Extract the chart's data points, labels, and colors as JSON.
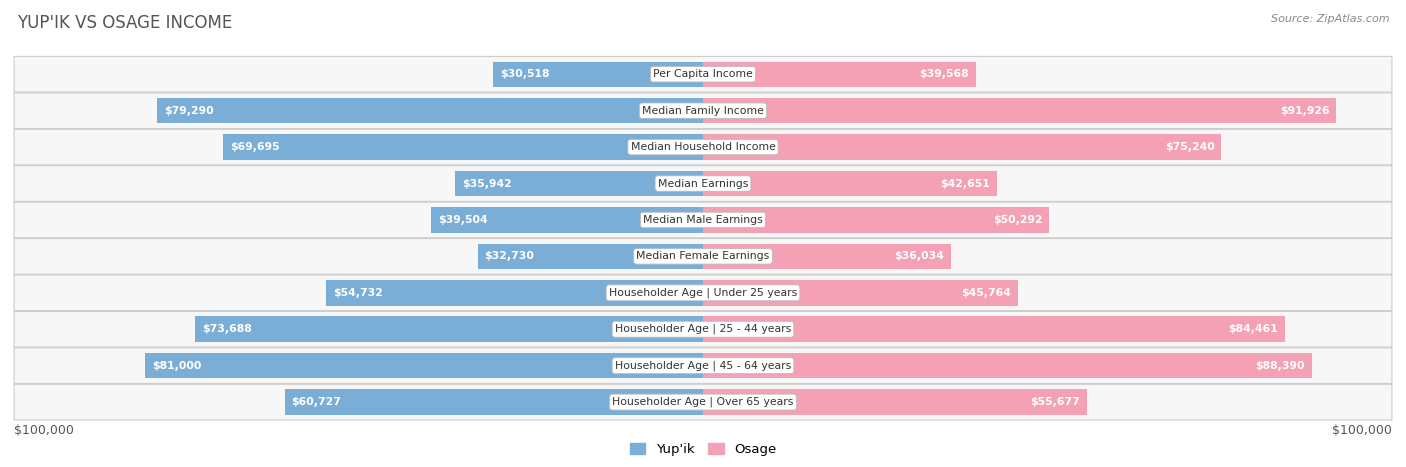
{
  "title": "YUP'IK VS OSAGE INCOME",
  "source": "Source: ZipAtlas.com",
  "categories": [
    "Per Capita Income",
    "Median Family Income",
    "Median Household Income",
    "Median Earnings",
    "Median Male Earnings",
    "Median Female Earnings",
    "Householder Age | Under 25 years",
    "Householder Age | 25 - 44 years",
    "Householder Age | 45 - 64 years",
    "Householder Age | Over 65 years"
  ],
  "yupik_values": [
    30518,
    79290,
    69695,
    35942,
    39504,
    32730,
    54732,
    73688,
    81000,
    60727
  ],
  "osage_values": [
    39568,
    91926,
    75240,
    42651,
    50292,
    36034,
    45764,
    84461,
    88390,
    55677
  ],
  "yupik_color": "#7aaed6",
  "osage_color": "#f4a0b5",
  "max_value": 100000,
  "x_label_left": "$100,000",
  "x_label_right": "$100,000",
  "legend_yupik": "Yup'ik",
  "legend_osage": "Osage",
  "background_color": "#ffffff",
  "row_border_color": "#cccccc",
  "title_color": "#555555",
  "source_color": "#888888",
  "label_inside_color": "#ffffff",
  "label_outside_color": "#555555",
  "inside_threshold": 0.2
}
